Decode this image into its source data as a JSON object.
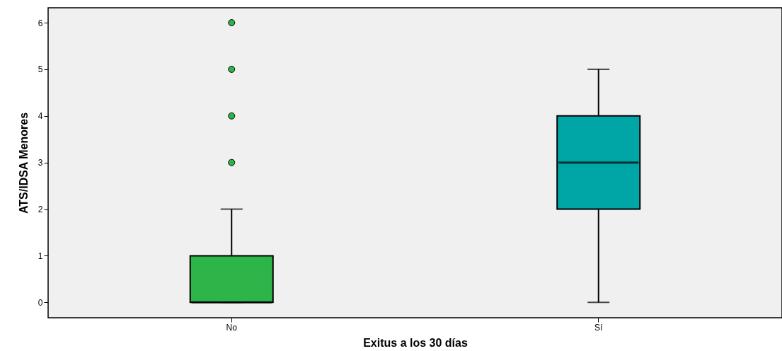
{
  "chart_data": {
    "type": "box",
    "xlabel": "Exitus a los 30 días",
    "ylabel": "ATS/IDSA Menores",
    "categories": [
      "No",
      "Sí"
    ],
    "boxes": [
      {
        "low": 0,
        "q1": 0,
        "median": 0,
        "q3": 1,
        "high": 2,
        "outliers": [
          3,
          4,
          5,
          6
        ]
      },
      {
        "low": 0,
        "q1": 2,
        "median": 3,
        "q3": 4,
        "high": 5
      }
    ],
    "colors": [
      "#2db54a",
      "#00a6a6"
    ],
    "ylim": [
      -0.33,
      6.32
    ],
    "yticks": [
      0,
      1,
      2,
      3,
      4,
      5,
      6
    ],
    "grid": false
  }
}
